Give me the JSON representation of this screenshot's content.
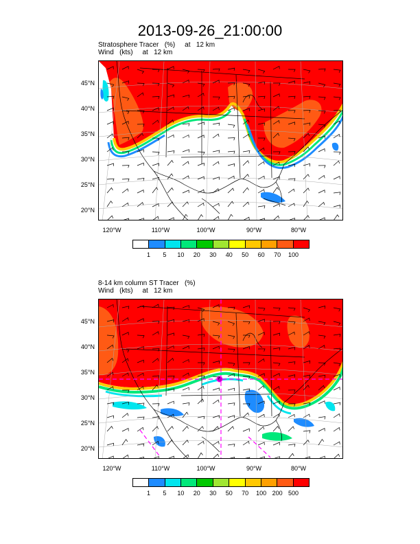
{
  "title": "2013-09-26_21:00:00",
  "palette": [
    "#ffffff",
    "#1e8cff",
    "#00e5ee",
    "#00e87a",
    "#00c800",
    "#a0e632",
    "#ffff00",
    "#ffc800",
    "#ffa000",
    "#ff5a14",
    "#ff0000"
  ],
  "panels": [
    {
      "label_line1": "Stratosphere Tracer   (%)     at   12 km",
      "label_line2": "Wind   (kts)     at   12 km",
      "lat_labels": [
        "45°N",
        "40°N",
        "35°N",
        "30°N",
        "25°N",
        "20°N"
      ],
      "lon_labels": [
        "120°W",
        "110°W",
        "100°W",
        "90°W",
        "80°W"
      ],
      "colorbar_labels": [
        "1",
        "5",
        "10",
        "20",
        "30",
        "40",
        "50",
        "60",
        "70",
        "100"
      ]
    },
    {
      "label_line1": "8-14 km column ST Tracer   (%)",
      "label_line2": "Wind   (kts)     at   12 km",
      "lat_labels": [
        "45°N",
        "40°N",
        "35°N",
        "30°N",
        "25°N",
        "20°N"
      ],
      "lon_labels": [
        "120°W",
        "110°W",
        "100°W",
        "90°W",
        "80°W"
      ],
      "colorbar_labels": [
        "1",
        "5",
        "10",
        "20",
        "30",
        "50",
        "70",
        "100",
        "200",
        "500"
      ]
    }
  ]
}
